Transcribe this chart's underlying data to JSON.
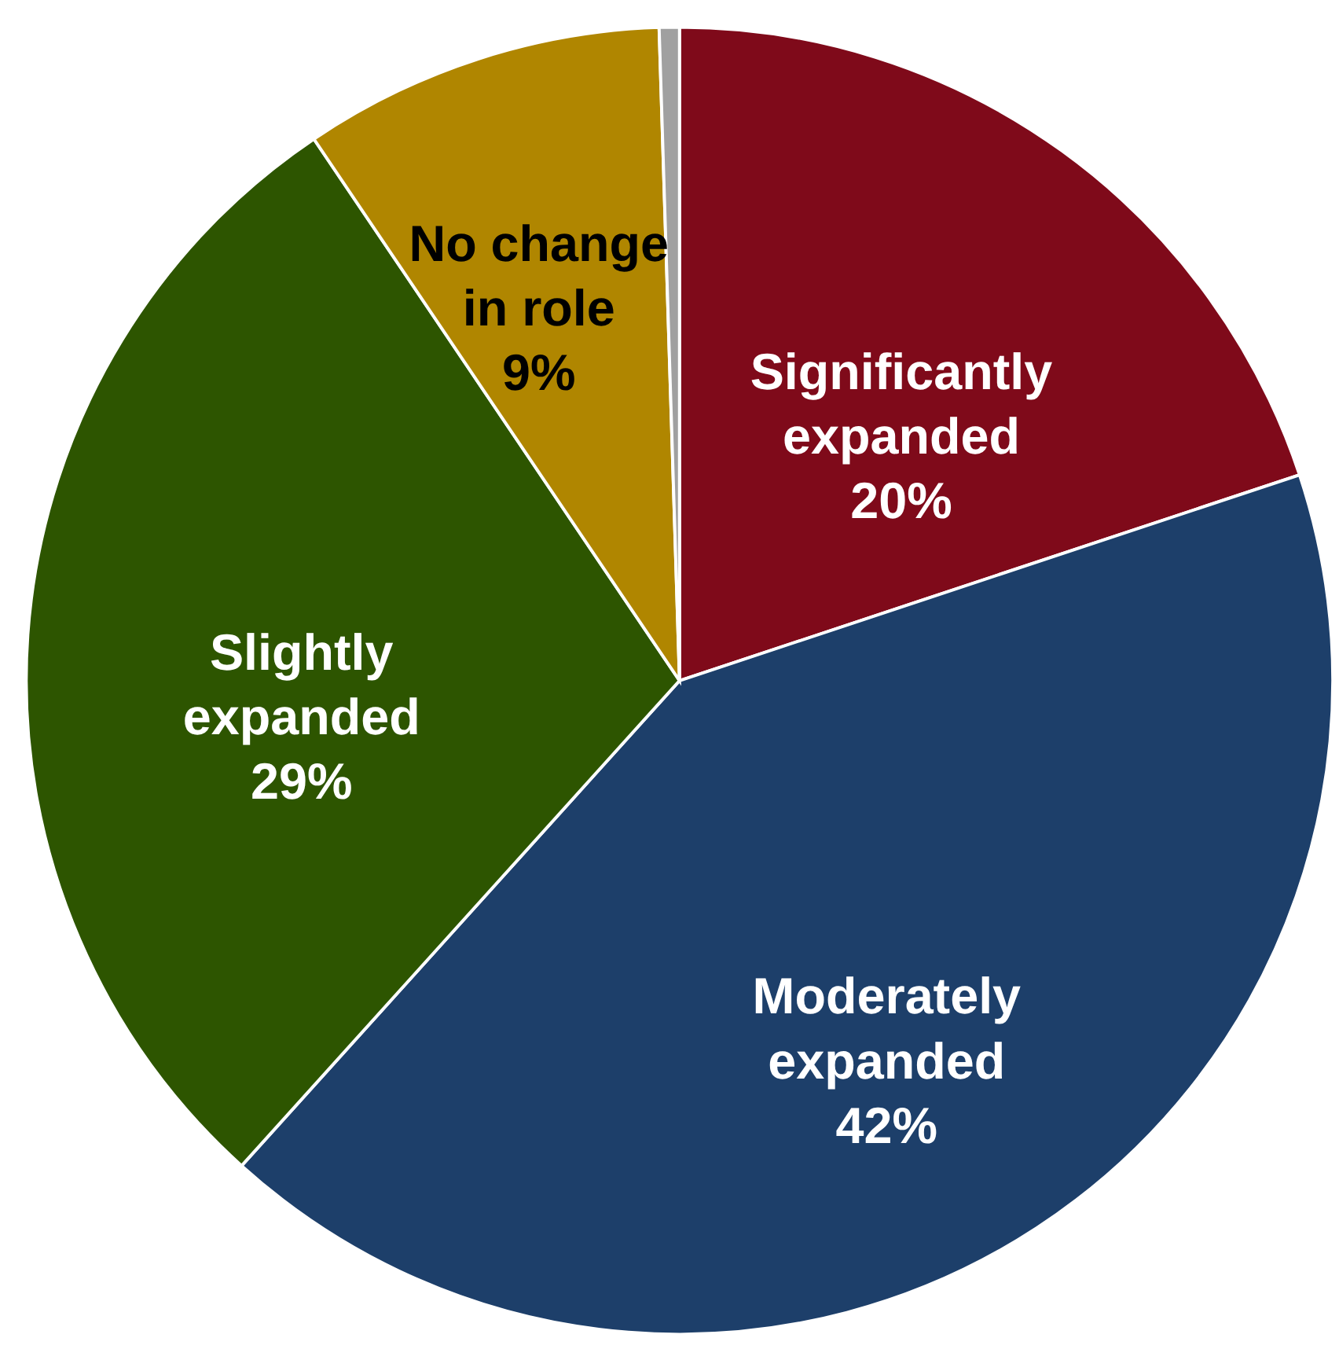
{
  "chart_data": {
    "type": "pie",
    "categories": [
      "Significantly expanded",
      "Moderately expanded",
      "Slightly expanded",
      "No change in role",
      null
    ],
    "values": [
      20,
      42,
      29,
      9,
      0.5
    ],
    "value_labels": [
      "20%",
      "42%",
      "29%",
      "9%",
      null
    ],
    "colors": [
      "#7f0a1a",
      "#1d3f6a",
      "#2d5500",
      "#b08600",
      "#a0a0a0"
    ],
    "legend": false
  }
}
